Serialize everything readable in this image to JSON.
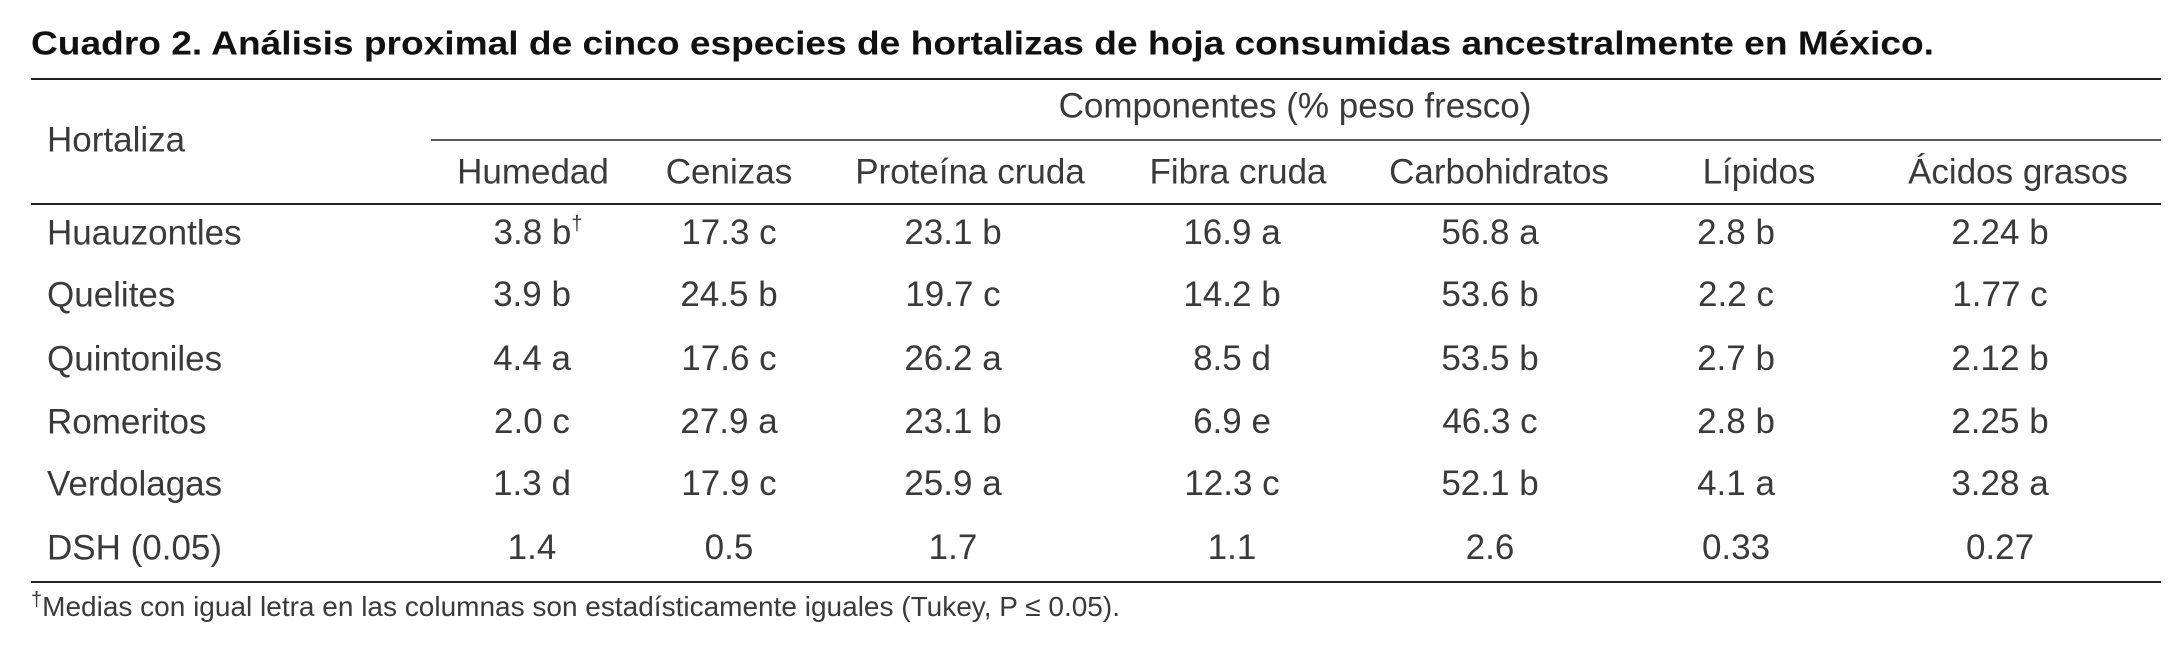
{
  "title": "Cuadro 2. Análisis proximal de cinco especies de hortalizas de hoja consumidas ancestralmente en México.",
  "table": {
    "row_header": "Hortaliza",
    "group_header": "Componentes (% peso fresco)",
    "columns": [
      "Humedad",
      "Cenizas",
      "Proteína cruda",
      "Fibra cruda",
      "Carbohidratos",
      "Lípidos",
      "Ácidos grasos"
    ],
    "rows": [
      {
        "label": "Huauzontles",
        "cells": [
          "3.8 b",
          "17.3 c",
          "23.1 b",
          "16.9 a",
          "56.8 a",
          "2.8 b",
          "2.24 b"
        ]
      },
      {
        "label": "Quelites",
        "cells": [
          "3.9 b",
          "24.5 b",
          "19.7 c",
          "14.2 b",
          "53.6 b",
          "2.2 c",
          "1.77 c"
        ]
      },
      {
        "label": "Quintoniles",
        "cells": [
          "4.4 a",
          "17.6 c",
          "26.2 a",
          "8.5 d",
          "53.5 b",
          "2.7 b",
          "2.12 b"
        ]
      },
      {
        "label": "Romeritos",
        "cells": [
          "2.0 c",
          "27.9 a",
          "23.1 b",
          "6.9 e",
          "46.3 c",
          "2.8 b",
          "2.25 b"
        ]
      },
      {
        "label": "Verdolagas",
        "cells": [
          "1.3 d",
          "17.9 c",
          "25.9 a",
          "12.3 c",
          "52.1 b",
          "4.1 a",
          "3.28 a"
        ]
      },
      {
        "label": "DSH (0.05)",
        "cells": [
          "1.4",
          "0.5",
          "1.7",
          "1.1",
          "2.6",
          "0.33",
          "0.27"
        ]
      }
    ]
  },
  "footnote_mark": "†",
  "footnote": "Medias con igual letra en las columnas son estadísticamente iguales (Tukey, P ≤ 0.05)."
}
